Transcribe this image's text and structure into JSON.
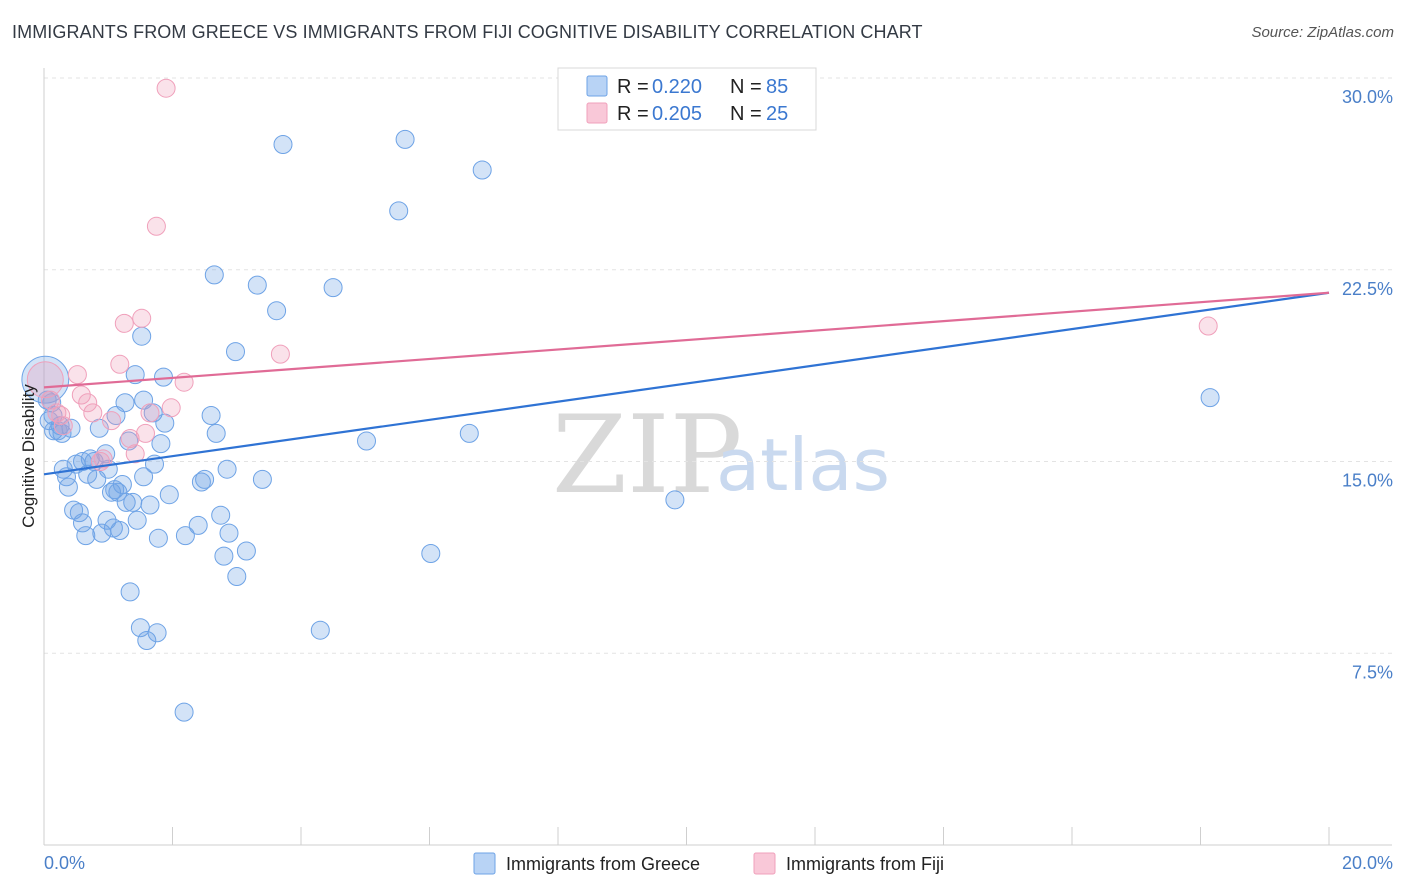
{
  "title": "IMMIGRANTS FROM GREECE VS IMMIGRANTS FROM FIJI COGNITIVE DISABILITY CORRELATION CHART",
  "source": "Source: ZipAtlas.com",
  "watermark": {
    "zip": "ZIP",
    "atlas": "atlas"
  },
  "colors": {
    "greece": "#6ea3e6",
    "fiji": "#f0a0bb",
    "greece_line": "#2f73d4",
    "fiji_line": "#e06b96",
    "tick_label": "#4a7fc8"
  },
  "legend": [
    {
      "series": "Immigrants from Greece",
      "r_label": "R =",
      "r_value": "0.220",
      "n_label": "N =",
      "n_value": "85"
    },
    {
      "series": "Immigrants from Fiji",
      "r_label": "R =",
      "r_value": "0.205",
      "n_label": "N =",
      "n_value": "25"
    }
  ],
  "chart_data": {
    "type": "scatter",
    "title": "IMMIGRANTS FROM GREECE VS IMMIGRANTS FROM FIJI COGNITIVE DISABILITY CORRELATION CHART",
    "xlabel": "",
    "ylabel": "Cognitive Disability",
    "xlim": [
      0,
      20
    ],
    "ylim": [
      0,
      31
    ],
    "x_tick_labels": [
      "0.0%",
      "20.0%"
    ],
    "y_ticks": [
      7.5,
      15.0,
      22.5,
      30.0
    ],
    "y_tick_labels": [
      "7.5%",
      "15.0%",
      "22.5%",
      "30.0%"
    ],
    "series": [
      {
        "name": "Immigrants from Greece",
        "r": 0.22,
        "n": 85,
        "trend": {
          "x": [
            0,
            20
          ],
          "y": [
            14.5,
            21.6
          ]
        },
        "points": [
          {
            "x": 0.02,
            "y": 18.2,
            "s": 2.6
          },
          {
            "x": 0.05,
            "y": 17.4,
            "s": 1
          },
          {
            "x": 0.08,
            "y": 16.6,
            "s": 1
          },
          {
            "x": 0.12,
            "y": 17.3,
            "s": 1
          },
          {
            "x": 0.15,
            "y": 16.2,
            "s": 1
          },
          {
            "x": 0.22,
            "y": 16.2,
            "s": 1
          },
          {
            "x": 0.25,
            "y": 16.4,
            "s": 1
          },
          {
            "x": 0.3,
            "y": 14.7,
            "s": 1
          },
          {
            "x": 0.35,
            "y": 14.4,
            "s": 1
          },
          {
            "x": 0.38,
            "y": 14.0,
            "s": 1
          },
          {
            "x": 0.5,
            "y": 14.9,
            "s": 1
          },
          {
            "x": 0.55,
            "y": 13.0,
            "s": 1
          },
          {
            "x": 0.6,
            "y": 12.6,
            "s": 1
          },
          {
            "x": 0.65,
            "y": 12.1,
            "s": 1
          },
          {
            "x": 0.68,
            "y": 14.5,
            "s": 1
          },
          {
            "x": 0.72,
            "y": 15.1,
            "s": 1
          },
          {
            "x": 0.78,
            "y": 15.0,
            "s": 1
          },
          {
            "x": 0.82,
            "y": 14.3,
            "s": 1
          },
          {
            "x": 0.86,
            "y": 16.3,
            "s": 1
          },
          {
            "x": 0.9,
            "y": 12.2,
            "s": 1
          },
          {
            "x": 0.96,
            "y": 15.3,
            "s": 1
          },
          {
            "x": 0.98,
            "y": 12.7,
            "s": 1
          },
          {
            "x": 1.0,
            "y": 14.7,
            "s": 1
          },
          {
            "x": 1.05,
            "y": 13.8,
            "s": 1
          },
          {
            "x": 1.08,
            "y": 12.4,
            "s": 1
          },
          {
            "x": 1.12,
            "y": 16.8,
            "s": 1
          },
          {
            "x": 1.15,
            "y": 13.8,
            "s": 1
          },
          {
            "x": 1.18,
            "y": 12.3,
            "s": 1
          },
          {
            "x": 1.22,
            "y": 14.1,
            "s": 1
          },
          {
            "x": 1.26,
            "y": 17.3,
            "s": 1
          },
          {
            "x": 1.28,
            "y": 13.4,
            "s": 1
          },
          {
            "x": 1.32,
            "y": 15.8,
            "s": 1
          },
          {
            "x": 1.34,
            "y": 9.9,
            "s": 1
          },
          {
            "x": 1.38,
            "y": 13.4,
            "s": 1
          },
          {
            "x": 1.42,
            "y": 18.4,
            "s": 1
          },
          {
            "x": 1.45,
            "y": 12.7,
            "s": 1
          },
          {
            "x": 1.5,
            "y": 8.5,
            "s": 1
          },
          {
            "x": 1.52,
            "y": 19.9,
            "s": 1
          },
          {
            "x": 1.55,
            "y": 17.4,
            "s": 1
          },
          {
            "x": 1.55,
            "y": 14.4,
            "s": 1
          },
          {
            "x": 1.6,
            "y": 8.0,
            "s": 1
          },
          {
            "x": 1.65,
            "y": 13.3,
            "s": 1
          },
          {
            "x": 1.7,
            "y": 16.9,
            "s": 1
          },
          {
            "x": 1.72,
            "y": 14.9,
            "s": 1
          },
          {
            "x": 1.76,
            "y": 8.3,
            "s": 1
          },
          {
            "x": 1.78,
            "y": 12.0,
            "s": 1
          },
          {
            "x": 1.82,
            "y": 15.7,
            "s": 1
          },
          {
            "x": 1.86,
            "y": 18.3,
            "s": 1
          },
          {
            "x": 1.88,
            "y": 16.5,
            "s": 1
          },
          {
            "x": 1.95,
            "y": 13.7,
            "s": 1
          },
          {
            "x": 2.18,
            "y": 5.2,
            "s": 1
          },
          {
            "x": 2.2,
            "y": 12.1,
            "s": 1
          },
          {
            "x": 2.4,
            "y": 12.5,
            "s": 1
          },
          {
            "x": 2.45,
            "y": 14.2,
            "s": 1
          },
          {
            "x": 2.5,
            "y": 14.3,
            "s": 1
          },
          {
            "x": 2.6,
            "y": 16.8,
            "s": 1
          },
          {
            "x": 2.65,
            "y": 22.3,
            "s": 1
          },
          {
            "x": 2.68,
            "y": 16.1,
            "s": 1
          },
          {
            "x": 2.75,
            "y": 12.9,
            "s": 1
          },
          {
            "x": 2.8,
            "y": 11.3,
            "s": 1
          },
          {
            "x": 2.85,
            "y": 14.7,
            "s": 1
          },
          {
            "x": 2.88,
            "y": 12.2,
            "s": 1
          },
          {
            "x": 2.98,
            "y": 19.3,
            "s": 1
          },
          {
            "x": 3.0,
            "y": 10.5,
            "s": 1
          },
          {
            "x": 3.15,
            "y": 11.5,
            "s": 1
          },
          {
            "x": 3.32,
            "y": 21.9,
            "s": 1
          },
          {
            "x": 3.4,
            "y": 14.3,
            "s": 1
          },
          {
            "x": 3.62,
            "y": 20.9,
            "s": 1
          },
          {
            "x": 3.72,
            "y": 27.4,
            "s": 1
          },
          {
            "x": 4.3,
            "y": 8.4,
            "s": 1
          },
          {
            "x": 4.5,
            "y": 21.8,
            "s": 1
          },
          {
            "x": 5.02,
            "y": 15.8,
            "s": 1
          },
          {
            "x": 5.52,
            "y": 24.8,
            "s": 1
          },
          {
            "x": 5.62,
            "y": 27.6,
            "s": 1
          },
          {
            "x": 6.02,
            "y": 11.4,
            "s": 1
          },
          {
            "x": 6.62,
            "y": 16.1,
            "s": 1
          },
          {
            "x": 6.82,
            "y": 26.4,
            "s": 1
          },
          {
            "x": 9.82,
            "y": 13.5,
            "s": 1
          },
          {
            "x": 18.15,
            "y": 17.5,
            "s": 1
          },
          {
            "x": 0.14,
            "y": 16.8,
            "s": 1
          },
          {
            "x": 0.28,
            "y": 16.1,
            "s": 1
          },
          {
            "x": 0.42,
            "y": 16.3,
            "s": 1
          },
          {
            "x": 0.6,
            "y": 15.0,
            "s": 1
          },
          {
            "x": 0.46,
            "y": 13.1,
            "s": 1
          },
          {
            "x": 1.1,
            "y": 13.9,
            "s": 1
          }
        ]
      },
      {
        "name": "Immigrants from Fiji",
        "r": 0.205,
        "n": 25,
        "trend": {
          "x": [
            0,
            20
          ],
          "y": [
            17.9,
            21.6
          ]
        },
        "points": [
          {
            "x": 0.02,
            "y": 18.2,
            "s": 2.0
          },
          {
            "x": 0.1,
            "y": 17.4,
            "s": 1
          },
          {
            "x": 0.2,
            "y": 16.9,
            "s": 1
          },
          {
            "x": 0.26,
            "y": 16.8,
            "s": 1
          },
          {
            "x": 0.3,
            "y": 16.4,
            "s": 1
          },
          {
            "x": 0.52,
            "y": 18.4,
            "s": 1
          },
          {
            "x": 0.58,
            "y": 17.6,
            "s": 1
          },
          {
            "x": 0.68,
            "y": 17.3,
            "s": 1
          },
          {
            "x": 0.76,
            "y": 16.9,
            "s": 1
          },
          {
            "x": 0.88,
            "y": 15.0,
            "s": 1
          },
          {
            "x": 0.92,
            "y": 15.1,
            "s": 1
          },
          {
            "x": 1.05,
            "y": 16.6,
            "s": 1
          },
          {
            "x": 1.18,
            "y": 18.8,
            "s": 1
          },
          {
            "x": 1.25,
            "y": 20.4,
            "s": 1
          },
          {
            "x": 1.34,
            "y": 15.9,
            "s": 1
          },
          {
            "x": 1.42,
            "y": 15.3,
            "s": 1
          },
          {
            "x": 1.52,
            "y": 20.6,
            "s": 1
          },
          {
            "x": 1.58,
            "y": 16.1,
            "s": 1
          },
          {
            "x": 1.65,
            "y": 16.9,
            "s": 1
          },
          {
            "x": 1.75,
            "y": 24.2,
            "s": 1
          },
          {
            "x": 1.9,
            "y": 29.6,
            "s": 1
          },
          {
            "x": 1.98,
            "y": 17.1,
            "s": 1
          },
          {
            "x": 2.18,
            "y": 18.1,
            "s": 1
          },
          {
            "x": 3.68,
            "y": 19.2,
            "s": 1
          },
          {
            "x": 18.12,
            "y": 20.3,
            "s": 1
          }
        ]
      }
    ]
  }
}
